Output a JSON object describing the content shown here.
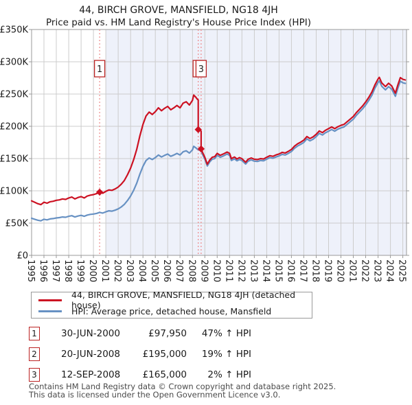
{
  "chart_data": {
    "type": "line",
    "title": "44, BIRCH GROVE, MANSFIELD, NG18 4JH",
    "subtitle": "Price paid vs. HM Land Registry's House Price Index (HPI)",
    "xlabel": "",
    "ylabel": "",
    "values_unit": "GBP thousands",
    "xlim": [
      1995,
      2025.3
    ],
    "ylim": [
      0,
      350
    ],
    "grid": true,
    "legend_position": "below",
    "y_ticks": [
      {
        "label": "£0",
        "value": 0
      },
      {
        "label": "£50K",
        "value": 50
      },
      {
        "label": "£100K",
        "value": 100
      },
      {
        "label": "£150K",
        "value": 150
      },
      {
        "label": "£200K",
        "value": 200
      },
      {
        "label": "£250K",
        "value": 250
      },
      {
        "label": "£300K",
        "value": 300
      },
      {
        "label": "£350K",
        "value": 350
      }
    ],
    "x_ticks": [
      1995,
      1996,
      1997,
      1998,
      1999,
      2000,
      2001,
      2002,
      2003,
      2004,
      2005,
      2006,
      2007,
      2008,
      2009,
      2010,
      2011,
      2012,
      2013,
      2014,
      2015,
      2016,
      2017,
      2018,
      2019,
      2020,
      2021,
      2022,
      2023,
      2024,
      2025
    ],
    "shaded_region": {
      "from": 2001,
      "to": 2025.3,
      "color": "#eef1fa"
    },
    "events": [
      {
        "label": "1",
        "x": 2000.5,
        "y": 97.95
      },
      {
        "label": "2",
        "x": 2008.47,
        "y": 195
      },
      {
        "label": "3",
        "x": 2008.7,
        "y": 165
      }
    ],
    "series": [
      {
        "name": "HPI: Average price, detached house, Mansfield",
        "color": "#6791c3",
        "points": [
          [
            1995.0,
            57.5
          ],
          [
            1995.25,
            56
          ],
          [
            1995.5,
            54.5
          ],
          [
            1995.75,
            53.5
          ],
          [
            1996.0,
            56
          ],
          [
            1996.25,
            55
          ],
          [
            1996.5,
            56.5
          ],
          [
            1996.75,
            57
          ],
          [
            1997.0,
            58
          ],
          [
            1997.25,
            58.5
          ],
          [
            1997.5,
            59.5
          ],
          [
            1997.75,
            59
          ],
          [
            1998.0,
            60.5
          ],
          [
            1998.25,
            61.5
          ],
          [
            1998.5,
            59.5
          ],
          [
            1998.75,
            61
          ],
          [
            1999.0,
            62
          ],
          [
            1999.25,
            60.5
          ],
          [
            1999.5,
            62.5
          ],
          [
            1999.75,
            63.5
          ],
          [
            2000.0,
            64
          ],
          [
            2000.25,
            65
          ],
          [
            2000.5,
            66.6
          ],
          [
            2000.75,
            65.5
          ],
          [
            2001.0,
            67.5
          ],
          [
            2001.25,
            69
          ],
          [
            2001.5,
            68.5
          ],
          [
            2001.75,
            70
          ],
          [
            2002.0,
            72
          ],
          [
            2002.25,
            75
          ],
          [
            2002.5,
            79
          ],
          [
            2002.75,
            85
          ],
          [
            2003.0,
            92
          ],
          [
            2003.25,
            101
          ],
          [
            2003.5,
            112
          ],
          [
            2003.75,
            126
          ],
          [
            2004.0,
            138
          ],
          [
            2004.25,
            147
          ],
          [
            2004.5,
            151
          ],
          [
            2004.75,
            148.5
          ],
          [
            2005.0,
            151.5
          ],
          [
            2005.25,
            155.5
          ],
          [
            2005.5,
            152.5
          ],
          [
            2005.75,
            155
          ],
          [
            2006.0,
            157
          ],
          [
            2006.25,
            153.5
          ],
          [
            2006.5,
            155.5
          ],
          [
            2006.75,
            158
          ],
          [
            2007.0,
            155.5
          ],
          [
            2007.25,
            160.5
          ],
          [
            2007.5,
            162
          ],
          [
            2007.75,
            158.5
          ],
          [
            2008.0,
            163.5
          ],
          [
            2008.1,
            169
          ],
          [
            2008.25,
            167
          ],
          [
            2008.4,
            164.5
          ],
          [
            2008.47,
            163.9
          ],
          [
            2008.6,
            163
          ],
          [
            2008.7,
            161.8
          ],
          [
            2008.85,
            155
          ],
          [
            2009.0,
            149
          ],
          [
            2009.2,
            138.5
          ],
          [
            2009.4,
            145
          ],
          [
            2009.6,
            149
          ],
          [
            2009.8,
            150
          ],
          [
            2010.0,
            155
          ],
          [
            2010.25,
            152
          ],
          [
            2010.5,
            154
          ],
          [
            2010.8,
            157
          ],
          [
            2011.0,
            155
          ],
          [
            2011.15,
            147
          ],
          [
            2011.4,
            149.5
          ],
          [
            2011.6,
            146.5
          ],
          [
            2011.8,
            148.5
          ],
          [
            2012.0,
            147
          ],
          [
            2012.3,
            141.5
          ],
          [
            2012.5,
            146
          ],
          [
            2012.75,
            148
          ],
          [
            2013.0,
            146
          ],
          [
            2013.25,
            145.5
          ],
          [
            2013.5,
            147
          ],
          [
            2013.75,
            146.5
          ],
          [
            2014.0,
            149
          ],
          [
            2014.25,
            151.5
          ],
          [
            2014.5,
            150.5
          ],
          [
            2014.75,
            152.5
          ],
          [
            2015.0,
            154
          ],
          [
            2015.25,
            156.5
          ],
          [
            2015.5,
            155.5
          ],
          [
            2015.75,
            158
          ],
          [
            2016.0,
            161
          ],
          [
            2016.25,
            166
          ],
          [
            2016.5,
            169.5
          ],
          [
            2016.75,
            172
          ],
          [
            2017.0,
            175
          ],
          [
            2017.25,
            180.5
          ],
          [
            2017.5,
            177.5
          ],
          [
            2017.75,
            180
          ],
          [
            2018.0,
            184
          ],
          [
            2018.25,
            189
          ],
          [
            2018.5,
            186.5
          ],
          [
            2018.75,
            190
          ],
          [
            2019.0,
            192.5
          ],
          [
            2019.25,
            195
          ],
          [
            2019.5,
            192.5
          ],
          [
            2019.75,
            195.5
          ],
          [
            2020.0,
            197.5
          ],
          [
            2020.25,
            199
          ],
          [
            2020.5,
            203
          ],
          [
            2020.75,
            207
          ],
          [
            2021.0,
            211
          ],
          [
            2021.25,
            217
          ],
          [
            2021.5,
            222
          ],
          [
            2021.75,
            227
          ],
          [
            2022.0,
            233
          ],
          [
            2022.25,
            240
          ],
          [
            2022.5,
            248
          ],
          [
            2022.75,
            259
          ],
          [
            2023.0,
            268
          ],
          [
            2023.1,
            270.5
          ],
          [
            2023.3,
            262
          ],
          [
            2023.6,
            256.5
          ],
          [
            2023.85,
            261.5
          ],
          [
            2024.1,
            257.5
          ],
          [
            2024.4,
            246.5
          ],
          [
            2024.6,
            259
          ],
          [
            2024.8,
            270
          ],
          [
            2025.0,
            267.5
          ],
          [
            2025.2,
            266.5
          ]
        ]
      },
      {
        "name": "44, BIRCH GROVE, MANSFIELD, NG18 4JH (detached house)",
        "color": "#cc1122",
        "points": [
          [
            1995.0,
            84.5
          ],
          [
            1995.25,
            82.3
          ],
          [
            1995.5,
            80.1
          ],
          [
            1995.75,
            78.6
          ],
          [
            1996.0,
            82.3
          ],
          [
            1996.25,
            80.9
          ],
          [
            1996.5,
            83.1
          ],
          [
            1996.75,
            83.8
          ],
          [
            1997.0,
            85.3
          ],
          [
            1997.25,
            86
          ],
          [
            1997.5,
            87.5
          ],
          [
            1997.75,
            86.7
          ],
          [
            1998.0,
            88.9
          ],
          [
            1998.25,
            90.4
          ],
          [
            1998.5,
            87.5
          ],
          [
            1998.75,
            89.7
          ],
          [
            1999.0,
            91.1
          ],
          [
            1999.25,
            88.9
          ],
          [
            1999.5,
            91.9
          ],
          [
            1999.75,
            93.3
          ],
          [
            2000.0,
            94.1
          ],
          [
            2000.25,
            95.6
          ],
          [
            2000.5,
            97.95
          ],
          [
            2000.75,
            96.3
          ],
          [
            2001.0,
            99.2
          ],
          [
            2001.25,
            101.4
          ],
          [
            2001.5,
            100.7
          ],
          [
            2001.75,
            102.9
          ],
          [
            2002.0,
            105.8
          ],
          [
            2002.25,
            110.3
          ],
          [
            2002.5,
            116.1
          ],
          [
            2002.75,
            125
          ],
          [
            2003.0,
            135.2
          ],
          [
            2003.25,
            148.5
          ],
          [
            2003.5,
            164.6
          ],
          [
            2003.75,
            185.2
          ],
          [
            2004.0,
            202.9
          ],
          [
            2004.25,
            216.1
          ],
          [
            2004.5,
            222
          ],
          [
            2004.75,
            218.3
          ],
          [
            2005.0,
            222.7
          ],
          [
            2005.25,
            228.6
          ],
          [
            2005.5,
            224.2
          ],
          [
            2005.75,
            227.9
          ],
          [
            2006.0,
            230.8
          ],
          [
            2006.25,
            225.6
          ],
          [
            2006.5,
            228.6
          ],
          [
            2006.75,
            232.3
          ],
          [
            2007.0,
            228.6
          ],
          [
            2007.25,
            236
          ],
          [
            2007.5,
            238.1
          ],
          [
            2007.75,
            233
          ],
          [
            2008.0,
            240.3
          ],
          [
            2008.1,
            248.4
          ],
          [
            2008.25,
            245.5
          ],
          [
            2008.4,
            241.8
          ],
          [
            2008.47,
            240.9
          ],
          [
            2008.47,
            195
          ],
          [
            2008.6,
            194
          ],
          [
            2008.7,
            192.5
          ],
          [
            2008.7,
            165
          ],
          [
            2008.85,
            158.1
          ],
          [
            2009.0,
            152
          ],
          [
            2009.2,
            141.3
          ],
          [
            2009.4,
            147.9
          ],
          [
            2009.6,
            152
          ],
          [
            2009.8,
            153
          ],
          [
            2010.0,
            158.1
          ],
          [
            2010.25,
            155
          ],
          [
            2010.5,
            157.1
          ],
          [
            2010.8,
            160.1
          ],
          [
            2011.0,
            158.1
          ],
          [
            2011.15,
            149.9
          ],
          [
            2011.4,
            152.5
          ],
          [
            2011.6,
            149.4
          ],
          [
            2011.8,
            151.5
          ],
          [
            2012.0,
            149.9
          ],
          [
            2012.3,
            144.3
          ],
          [
            2012.5,
            148.9
          ],
          [
            2012.75,
            151
          ],
          [
            2013.0,
            148.9
          ],
          [
            2013.25,
            148.4
          ],
          [
            2013.5,
            149.9
          ],
          [
            2013.75,
            149.4
          ],
          [
            2014.0,
            152
          ],
          [
            2014.25,
            154.5
          ],
          [
            2014.5,
            153.5
          ],
          [
            2014.75,
            155.6
          ],
          [
            2015.0,
            157.1
          ],
          [
            2015.25,
            159.6
          ],
          [
            2015.5,
            158.6
          ],
          [
            2015.75,
            161.2
          ],
          [
            2016.0,
            164.2
          ],
          [
            2016.25,
            169.3
          ],
          [
            2016.5,
            172.9
          ],
          [
            2016.75,
            175.4
          ],
          [
            2017.0,
            178.5
          ],
          [
            2017.25,
            184.1
          ],
          [
            2017.5,
            181.1
          ],
          [
            2017.75,
            183.6
          ],
          [
            2018.0,
            187.7
          ],
          [
            2018.25,
            192.8
          ],
          [
            2018.5,
            190.2
          ],
          [
            2018.75,
            193.8
          ],
          [
            2019.0,
            196.4
          ],
          [
            2019.25,
            198.9
          ],
          [
            2019.5,
            196.4
          ],
          [
            2019.75,
            199.4
          ],
          [
            2020.0,
            201.5
          ],
          [
            2020.25,
            203
          ],
          [
            2020.5,
            207.1
          ],
          [
            2020.75,
            211.1
          ],
          [
            2021.0,
            215.2
          ],
          [
            2021.25,
            221.3
          ],
          [
            2021.5,
            226.4
          ],
          [
            2021.75,
            231.5
          ],
          [
            2022.0,
            237.7
          ],
          [
            2022.25,
            244.8
          ],
          [
            2022.5,
            253
          ],
          [
            2022.75,
            264.2
          ],
          [
            2023.0,
            273.4
          ],
          [
            2023.1,
            275.9
          ],
          [
            2023.3,
            267.2
          ],
          [
            2023.6,
            261.6
          ],
          [
            2023.85,
            266.7
          ],
          [
            2024.1,
            262.7
          ],
          [
            2024.4,
            251.4
          ],
          [
            2024.6,
            264.2
          ],
          [
            2024.8,
            275.4
          ],
          [
            2025.0,
            272.9
          ],
          [
            2025.2,
            271.8
          ]
        ]
      }
    ],
    "colors": {
      "grid": "#cccccc",
      "border": "#999999",
      "event_line": "#ee8888",
      "event_box_border": "#bb2222",
      "marker": "#cc1122",
      "tick_text": "#1a1a1a"
    }
  },
  "transactions": [
    {
      "num": "1",
      "date": "30-JUN-2000",
      "price": "£97,950",
      "pct": "47% ↑ HPI"
    },
    {
      "num": "2",
      "date": "20-JUN-2008",
      "price": "£195,000",
      "pct": "19% ↑ HPI"
    },
    {
      "num": "3",
      "date": "12-SEP-2008",
      "price": "£165,000",
      "pct": "2% ↑ HPI"
    }
  ],
  "footer": {
    "line1": "Contains HM Land Registry data © Crown copyright and database right 2025.",
    "line2": "This data is licensed under the Open Government Licence v3.0."
  }
}
